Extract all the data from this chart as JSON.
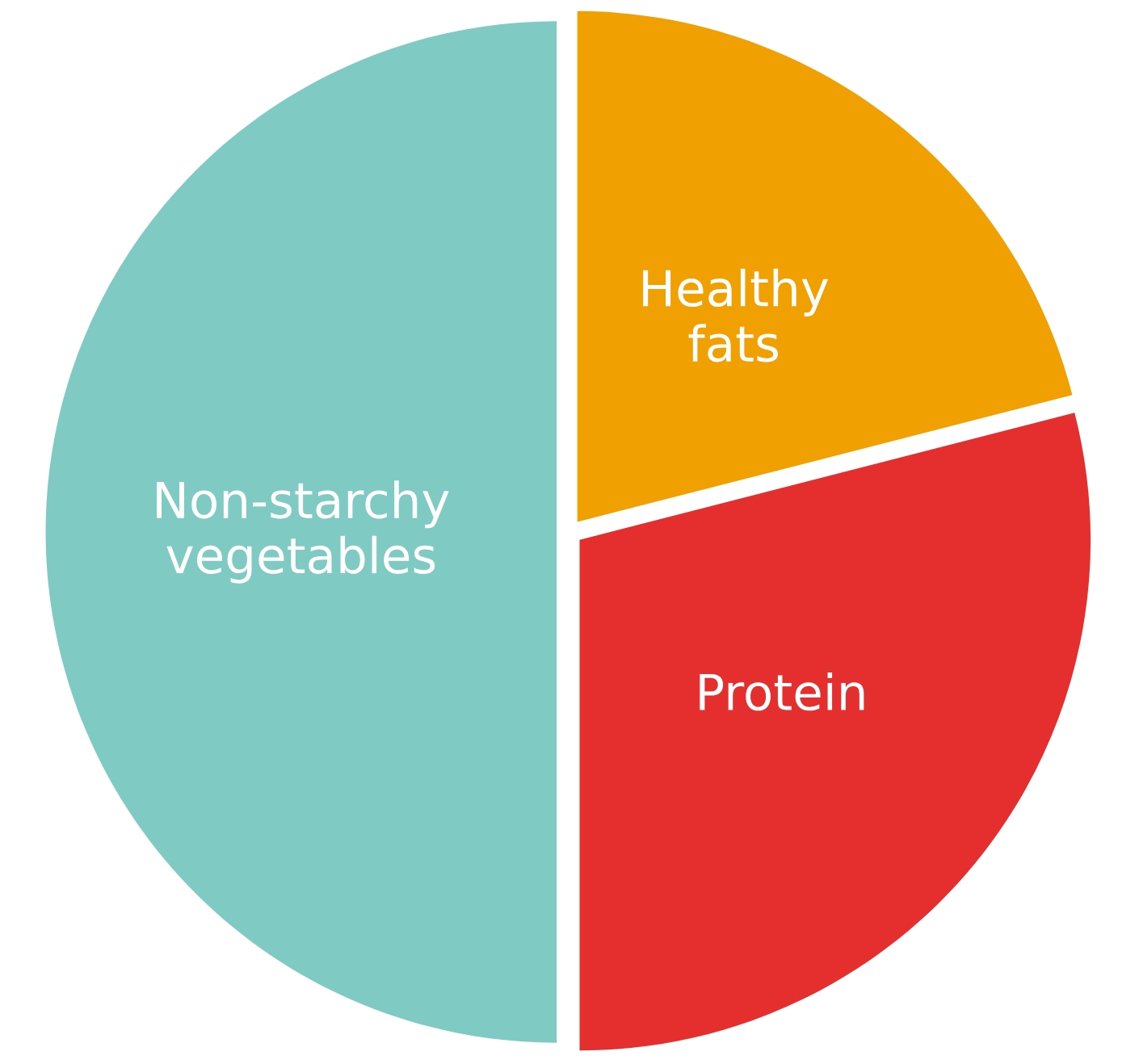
{
  "chart_data": {
    "type": "pie",
    "categories": [
      "Healthy\nfats",
      "Protein",
      "Non-starchy\nvegetables"
    ],
    "values": [
      21,
      29,
      50
    ],
    "colors": [
      "#f0a000",
      "#e52f2f",
      "#7fcbc4"
    ]
  }
}
